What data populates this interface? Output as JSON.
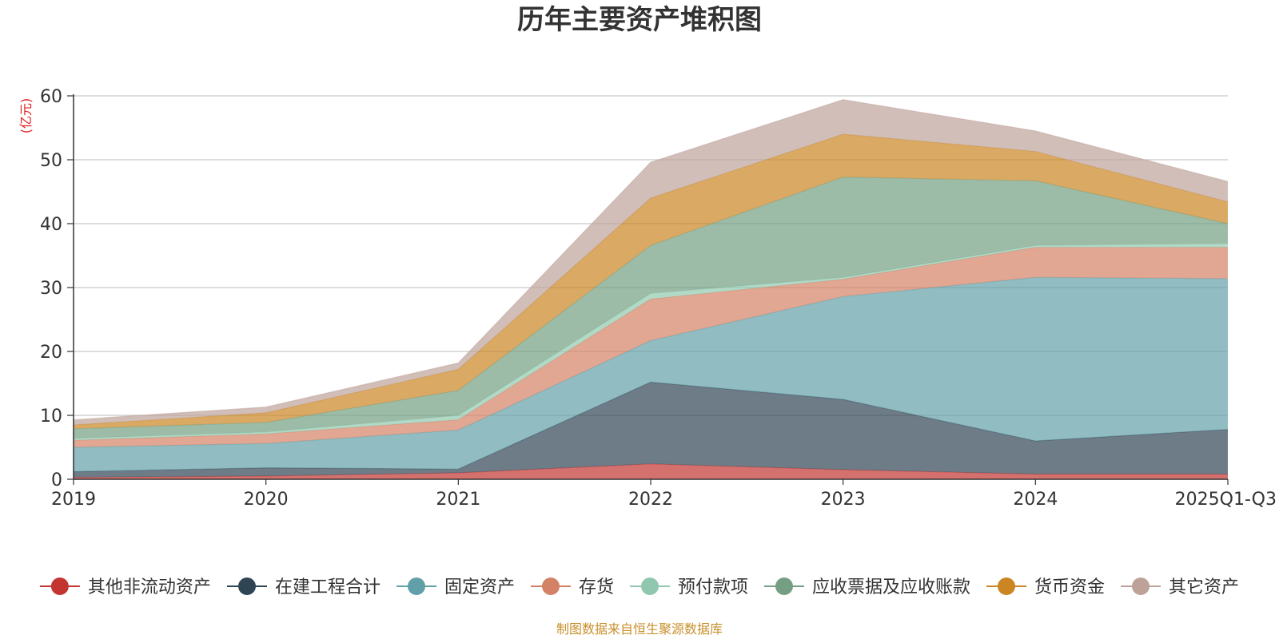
{
  "chart_data": {
    "type": "area",
    "stacked": true,
    "title": "历年主要资产堆积图",
    "ylabel": "(亿元)",
    "xlabel": "",
    "ylim": [
      0,
      60
    ],
    "yticks": [
      0,
      10,
      20,
      30,
      40,
      50,
      60
    ],
    "categories": [
      "2019",
      "2020",
      "2021",
      "2022",
      "2023",
      "2024",
      "2025Q1-Q3"
    ],
    "grid": true,
    "legend_position": "bottom",
    "series": [
      {
        "name": "其他非流动资产",
        "color": "#c23531",
        "values": [
          0.3,
          0.5,
          1.0,
          2.4,
          1.5,
          0.8,
          0.8
        ]
      },
      {
        "name": "在建工程合计",
        "color": "#2f4554",
        "values": [
          0.9,
          1.3,
          0.6,
          12.8,
          11.0,
          5.2,
          7.0
        ]
      },
      {
        "name": "固定资产",
        "color": "#61a0a8",
        "values": [
          3.8,
          3.8,
          6.1,
          6.5,
          16.1,
          25.6,
          23.6
        ]
      },
      {
        "name": "存货",
        "color": "#d48265",
        "values": [
          1.1,
          1.5,
          1.6,
          6.5,
          2.7,
          4.7,
          4.9
        ]
      },
      {
        "name": "预付款项",
        "color": "#91c7ae",
        "values": [
          0.3,
          0.3,
          0.7,
          0.9,
          0.3,
          0.3,
          0.6
        ]
      },
      {
        "name": "应收票据及应收账款",
        "color": "#749f83",
        "values": [
          1.5,
          1.5,
          3.9,
          7.5,
          15.7,
          10.1,
          3.1
        ]
      },
      {
        "name": "货币资金",
        "color": "#ca8622",
        "values": [
          0.6,
          1.5,
          3.3,
          7.4,
          6.7,
          4.6,
          3.4
        ]
      },
      {
        "name": "其它资产",
        "color": "#bda29a",
        "values": [
          0.8,
          0.9,
          1.0,
          5.6,
          5.4,
          3.2,
          3.2
        ]
      }
    ],
    "source": "制图数据来自恒生聚源数据库"
  }
}
